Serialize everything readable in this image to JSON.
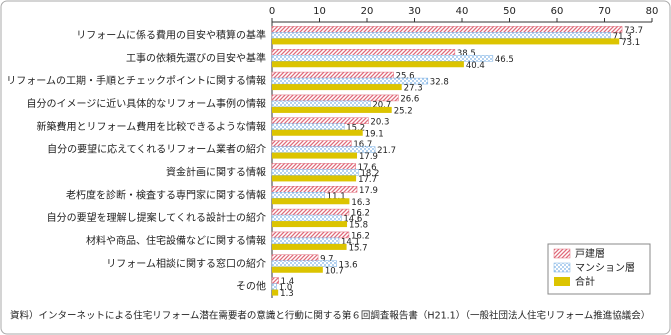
{
  "chart_data": {
    "type": "bar",
    "orientation": "horizontal",
    "categories": [
      "リフォームに係る費用の目安や積算の基準",
      "工事の依頼先選びの目安や基準",
      "リフォームの工期・手順とチェックポイントに関する情報",
      "自分のイメージに近い具体的なリフォーム事例の情報",
      "新築費用とリフォーム費用を比較できるような情報",
      "自分の要望に応えてくれるリフォーム業者の紹介",
      "資金計画に関する情報",
      "老朽度を診断・検査する専門家に関する情報",
      "自分の要望を理解し提案してくれる設計士の紹介",
      "材料や商品、住宅設備などに関する情報",
      "リフォーム相談に関する窓口の紹介",
      "その他"
    ],
    "series": [
      {
        "name": "戸建層",
        "color": "#e06a7a",
        "pattern": "hatch",
        "values": [
          73.7,
          38.5,
          25.6,
          26.6,
          20.3,
          16.7,
          17.6,
          17.9,
          16.2,
          16.2,
          9.7,
          1.4
        ]
      },
      {
        "name": "マンション層",
        "color": "#7fb3e6",
        "pattern": "dots",
        "values": [
          71.3,
          46.5,
          32.8,
          20.7,
          15.2,
          21.7,
          18.2,
          11.1,
          14.6,
          14.1,
          13.6,
          1.0
        ],
        "value_labels": [
          "71.3",
          "46.5",
          "32.8",
          "20.7",
          "15.2",
          "21.7",
          "18.2",
          "11.1",
          "14.6",
          "14.1",
          "13.6",
          "1.0"
        ]
      },
      {
        "name": "合計",
        "color": "#dcc400",
        "pattern": "solid",
        "values": [
          73.1,
          40.4,
          27.3,
          25.2,
          19.1,
          17.9,
          17.7,
          16.3,
          15.8,
          15.7,
          10.7,
          1.3
        ]
      }
    ],
    "xlim": [
      0,
      80
    ],
    "xticks": [
      0,
      10,
      20,
      30,
      40,
      50,
      60,
      70,
      80
    ],
    "legend": "bottom-right",
    "source": "資料）インターネットによる住宅リフォーム潜在需要者の意識と行動に関する第６回調査報告書（H21.1）（一般社団法人住宅リフォーム推進協議会）"
  }
}
